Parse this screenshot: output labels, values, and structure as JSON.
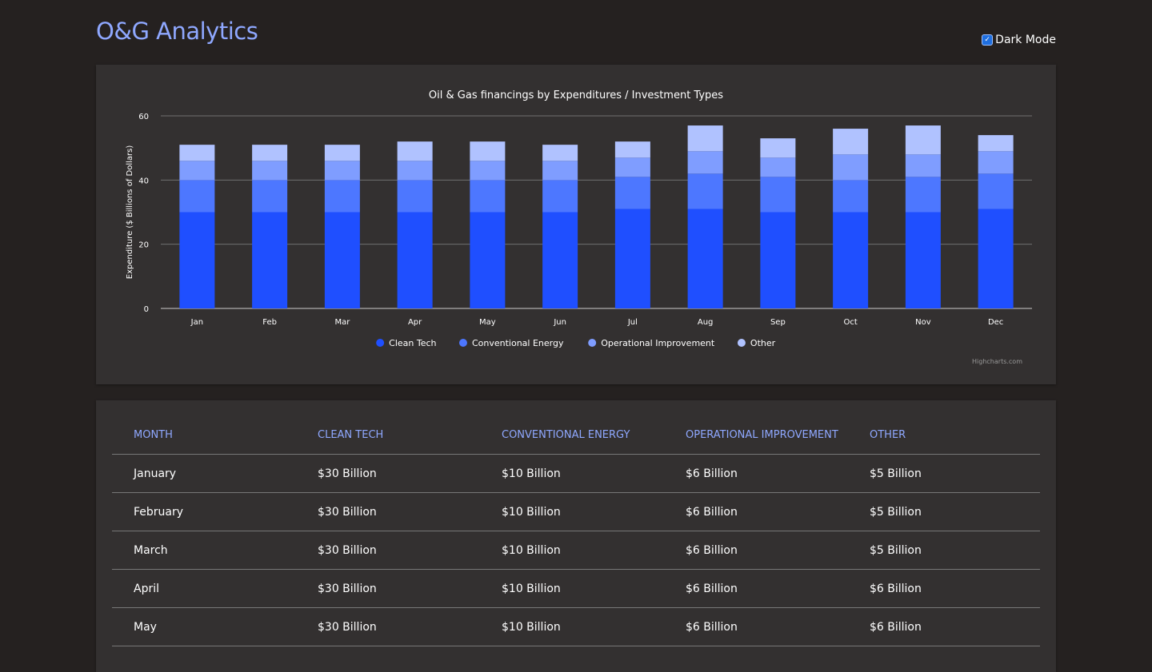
{
  "app": {
    "logo": "O&G Analytics",
    "dark_mode_label": "Dark Mode",
    "dark_mode_checked": true
  },
  "chart_data": {
    "type": "bar",
    "stacked": true,
    "title": "Oil & Gas financings by Expenditures / Investment Types",
    "ylabel": "Expenditure ($ Billions of Dollars)",
    "xlabel": "",
    "ylim": [
      0,
      60
    ],
    "yticks": [
      0,
      20,
      40,
      60
    ],
    "grid": true,
    "legend_position": "bottom",
    "credits": "Highcharts.com",
    "categories": [
      "Jan",
      "Feb",
      "Mar",
      "Apr",
      "May",
      "Jun",
      "Jul",
      "Aug",
      "Sep",
      "Oct",
      "Nov",
      "Dec"
    ],
    "series": [
      {
        "name": "Clean Tech",
        "color": "#1f4fff",
        "values": [
          30,
          30,
          30,
          30,
          30,
          30,
          31,
          31,
          30,
          30,
          30,
          31
        ]
      },
      {
        "name": "Conventional Energy",
        "color": "#4d77ff",
        "values": [
          10,
          10,
          10,
          10,
          10,
          10,
          10,
          11,
          11,
          10,
          11,
          11
        ]
      },
      {
        "name": "Operational Improvement",
        "color": "#7f9dff",
        "values": [
          6,
          6,
          6,
          6,
          6,
          6,
          6,
          7,
          6,
          8,
          7,
          7
        ]
      },
      {
        "name": "Other",
        "color": "#b0c2ff",
        "values": [
          5,
          5,
          5,
          6,
          6,
          5,
          5,
          8,
          6,
          8,
          9,
          5
        ]
      }
    ]
  },
  "table": {
    "columns": [
      "MONTH",
      "CLEAN TECH",
      "CONVENTIONAL ENERGY",
      "OPERATIONAL IMPROVEMENT",
      "OTHER"
    ],
    "rows": [
      [
        "January",
        "$30 Billion",
        "$10 Billion",
        "$6 Billion",
        "$5 Billion"
      ],
      [
        "February",
        "$30 Billion",
        "$10 Billion",
        "$6 Billion",
        "$5 Billion"
      ],
      [
        "March",
        "$30 Billion",
        "$10 Billion",
        "$6 Billion",
        "$5 Billion"
      ],
      [
        "April",
        "$30 Billion",
        "$10 Billion",
        "$6 Billion",
        "$6 Billion"
      ],
      [
        "May",
        "$30 Billion",
        "$10 Billion",
        "$6 Billion",
        "$6 Billion"
      ]
    ]
  }
}
